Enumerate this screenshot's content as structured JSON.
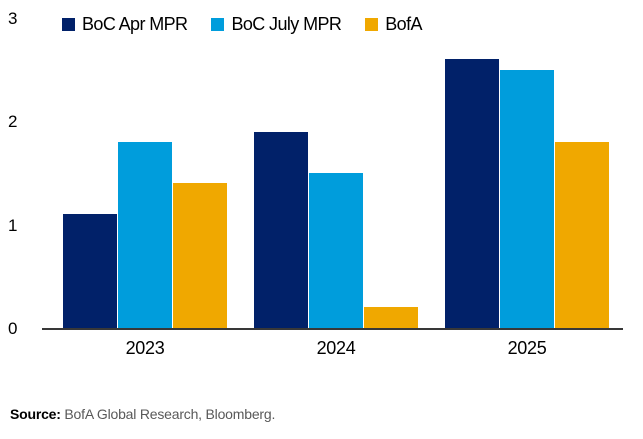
{
  "chart_data": {
    "type": "bar",
    "title": "",
    "categories": [
      "2023",
      "2024",
      "2025"
    ],
    "series": [
      {
        "name": "BoC Apr MPR",
        "color": "#012169",
        "values": [
          1.1,
          1.9,
          2.6
        ]
      },
      {
        "name": "BoC July MPR",
        "color": "#009DDC",
        "values": [
          1.8,
          1.5,
          2.5
        ]
      },
      {
        "name": "BofA",
        "color": "#F0A800",
        "values": [
          1.4,
          0.2,
          1.8
        ]
      }
    ],
    "xlabel": "",
    "ylabel": "",
    "ylim": [
      0,
      3
    ],
    "yticks": [
      0,
      1,
      2,
      3
    ],
    "grid": false,
    "legend_position": "top",
    "axis_color": "#383838"
  },
  "source": {
    "label": "Source:",
    "text": " BofA Global Research, Bloomberg."
  }
}
